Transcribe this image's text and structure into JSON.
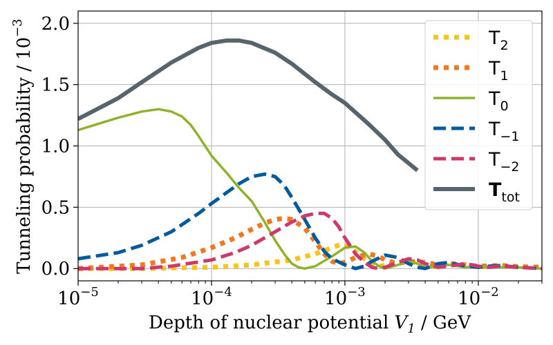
{
  "chart_data": {
    "type": "line",
    "xscale": "log",
    "xlim": [
      1e-05,
      0.03
    ],
    "ylim": [
      -0.1,
      2.1
    ],
    "grid": true,
    "legend_position": "top-right",
    "xlabel": {
      "main": "Depth of nuclear potential ",
      "var": "V",
      "sub": "1",
      "unit": " / GeV"
    },
    "ylabel": {
      "main": "Tunneling probability / 10",
      "sup": "−3"
    },
    "xticks": [
      {
        "value": 1e-05,
        "base": "10",
        "exp": "−5"
      },
      {
        "value": 0.0001,
        "base": "10",
        "exp": "−4"
      },
      {
        "value": 0.001,
        "base": "10",
        "exp": "−3"
      },
      {
        "value": 0.01,
        "base": "10",
        "exp": "−2"
      }
    ],
    "yticks": [
      {
        "value": 0.0,
        "label": "0.0"
      },
      {
        "value": 0.5,
        "label": "0.5"
      },
      {
        "value": 1.0,
        "label": "1.0"
      },
      {
        "value": 1.5,
        "label": "1.5"
      },
      {
        "value": 2.0,
        "label": "2.0"
      }
    ],
    "series": [
      {
        "id": "t2",
        "base": "T",
        "sub": "2",
        "color": "#f5c518",
        "style": "dotted",
        "points": [
          [
            1e-05,
            0.0
          ],
          [
            3e-05,
            0.0
          ],
          [
            0.0001,
            0.01
          ],
          [
            0.0002,
            0.03
          ],
          [
            0.0004,
            0.07
          ],
          [
            0.0006,
            0.12
          ],
          [
            0.0008,
            0.17
          ],
          [
            0.00095,
            0.2
          ],
          [
            0.0011,
            0.17
          ],
          [
            0.0014,
            0.08
          ],
          [
            0.0018,
            0.02
          ],
          [
            0.0022,
            0.03
          ],
          [
            0.003,
            0.06
          ],
          [
            0.004,
            0.03
          ],
          [
            0.005,
            0.01
          ],
          [
            0.006,
            0.04
          ],
          [
            0.008,
            0.03
          ],
          [
            0.01,
            0.01
          ],
          [
            0.012,
            0.02
          ],
          [
            0.015,
            0.025
          ],
          [
            0.02,
            0.015
          ],
          [
            0.03,
            0.01
          ]
        ]
      },
      {
        "id": "t1",
        "base": "T",
        "sub": "1",
        "color": "#f07820",
        "style": "dotted",
        "points": [
          [
            1e-05,
            0.0
          ],
          [
            3e-05,
            0.03
          ],
          [
            6e-05,
            0.09
          ],
          [
            0.0001,
            0.17
          ],
          [
            0.00015,
            0.25
          ],
          [
            0.0002,
            0.32
          ],
          [
            0.00025,
            0.37
          ],
          [
            0.0003,
            0.4
          ],
          [
            0.00035,
            0.41
          ],
          [
            0.0004,
            0.4
          ],
          [
            0.0005,
            0.33
          ],
          [
            0.0006,
            0.22
          ],
          [
            0.0007,
            0.12
          ],
          [
            0.0008,
            0.06
          ],
          [
            0.0009,
            0.04
          ],
          [
            0.001,
            0.05
          ],
          [
            0.0012,
            0.09
          ],
          [
            0.0015,
            0.12
          ],
          [
            0.0018,
            0.1
          ],
          [
            0.002,
            0.07
          ],
          [
            0.0025,
            0.04
          ],
          [
            0.003,
            0.06
          ],
          [
            0.004,
            0.05
          ],
          [
            0.005,
            0.03
          ],
          [
            0.006,
            0.04
          ],
          [
            0.008,
            0.03
          ],
          [
            0.01,
            0.02
          ],
          [
            0.015,
            0.025
          ],
          [
            0.02,
            0.015
          ],
          [
            0.03,
            0.01
          ]
        ]
      },
      {
        "id": "t0",
        "base": "T",
        "sub": "0",
        "color": "#8db32a",
        "style": "solid",
        "points": [
          [
            1e-05,
            1.13
          ],
          [
            2e-05,
            1.23
          ],
          [
            3e-05,
            1.28
          ],
          [
            4e-05,
            1.3
          ],
          [
            5e-05,
            1.28
          ],
          [
            6e-05,
            1.24
          ],
          [
            7e-05,
            1.17
          ],
          [
            8e-05,
            1.08
          ],
          [
            0.0001,
            0.92
          ],
          [
            0.00013,
            0.78
          ],
          [
            0.00016,
            0.66
          ],
          [
            0.0002,
            0.55
          ],
          [
            0.00025,
            0.38
          ],
          [
            0.0003,
            0.23
          ],
          [
            0.00035,
            0.12
          ],
          [
            0.0004,
            0.04
          ],
          [
            0.00045,
            0.01
          ],
          [
            0.0005,
            0.0
          ],
          [
            0.0006,
            0.02
          ],
          [
            0.0008,
            0.1
          ],
          [
            0.001,
            0.17
          ],
          [
            0.0012,
            0.18
          ],
          [
            0.0014,
            0.13
          ],
          [
            0.0016,
            0.06
          ],
          [
            0.0018,
            0.02
          ],
          [
            0.002,
            0.0
          ],
          [
            0.0025,
            0.03
          ],
          [
            0.003,
            0.06
          ],
          [
            0.0035,
            0.04
          ],
          [
            0.004,
            0.01
          ],
          [
            0.005,
            0.02
          ],
          [
            0.006,
            0.03
          ],
          [
            0.008,
            0.01
          ],
          [
            0.01,
            0.02
          ],
          [
            0.015,
            0.01
          ],
          [
            0.02,
            0.01
          ],
          [
            0.03,
            0.0
          ]
        ]
      },
      {
        "id": "tm1",
        "base": "T",
        "sub": "−1",
        "color": "#005aa0",
        "style": "dashed",
        "points": [
          [
            1e-05,
            0.08
          ],
          [
            2e-05,
            0.13
          ],
          [
            3e-05,
            0.19
          ],
          [
            5e-05,
            0.3
          ],
          [
            8e-05,
            0.45
          ],
          [
            0.0001,
            0.53
          ],
          [
            0.00013,
            0.62
          ],
          [
            0.00016,
            0.69
          ],
          [
            0.0002,
            0.75
          ],
          [
            0.00025,
            0.77
          ],
          [
            0.0003,
            0.75
          ],
          [
            0.00035,
            0.68
          ],
          [
            0.0004,
            0.58
          ],
          [
            0.0005,
            0.4
          ],
          [
            0.0006,
            0.25
          ],
          [
            0.0007,
            0.14
          ],
          [
            0.0008,
            0.08
          ],
          [
            0.001,
            0.03
          ],
          [
            0.0012,
            0.0
          ],
          [
            0.0014,
            0.02
          ],
          [
            0.0016,
            0.06
          ],
          [
            0.002,
            0.11
          ],
          [
            0.0025,
            0.09
          ],
          [
            0.003,
            0.04
          ],
          [
            0.0035,
            0.01
          ],
          [
            0.004,
            0.0
          ],
          [
            0.005,
            0.04
          ],
          [
            0.006,
            0.05
          ],
          [
            0.008,
            0.02
          ],
          [
            0.01,
            0.01
          ],
          [
            0.012,
            0.02
          ],
          [
            0.015,
            0.025
          ],
          [
            0.02,
            0.01
          ],
          [
            0.03,
            0.0
          ]
        ]
      },
      {
        "id": "tm2",
        "base": "T",
        "sub": "−2",
        "color": "#d0376a",
        "style": "dashed",
        "points": [
          [
            1e-05,
            0.0
          ],
          [
            3e-05,
            0.0
          ],
          [
            5e-05,
            0.02
          ],
          [
            0.0001,
            0.07
          ],
          [
            0.00015,
            0.13
          ],
          [
            0.0002,
            0.19
          ],
          [
            0.0003,
            0.3
          ],
          [
            0.0004,
            0.38
          ],
          [
            0.0005,
            0.43
          ],
          [
            0.0006,
            0.45
          ],
          [
            0.0007,
            0.45
          ],
          [
            0.0008,
            0.41
          ],
          [
            0.0009,
            0.34
          ],
          [
            0.001,
            0.25
          ],
          [
            0.0012,
            0.12
          ],
          [
            0.0014,
            0.05
          ],
          [
            0.0016,
            0.01
          ],
          [
            0.0018,
            0.0
          ],
          [
            0.002,
            0.01
          ],
          [
            0.0025,
            0.05
          ],
          [
            0.003,
            0.08
          ],
          [
            0.0035,
            0.07
          ],
          [
            0.004,
            0.04
          ],
          [
            0.005,
            0.01
          ],
          [
            0.006,
            0.02
          ],
          [
            0.008,
            0.04
          ],
          [
            0.01,
            0.02
          ],
          [
            0.012,
            0.01
          ],
          [
            0.015,
            0.02
          ],
          [
            0.02,
            0.01
          ],
          [
            0.03,
            0.0
          ]
        ]
      },
      {
        "id": "ttot",
        "base": "T",
        "sub": "tot",
        "color": "#58646c",
        "style": "solid",
        "bold": true,
        "points": [
          [
            1e-05,
            1.22
          ],
          [
            2e-05,
            1.39
          ],
          [
            3e-05,
            1.52
          ],
          [
            5e-05,
            1.68
          ],
          [
            8e-05,
            1.8
          ],
          [
            0.0001,
            1.84
          ],
          [
            0.00013,
            1.86
          ],
          [
            0.00016,
            1.86
          ],
          [
            0.0002,
            1.84
          ],
          [
            0.0003,
            1.76
          ],
          [
            0.0004,
            1.67
          ],
          [
            0.0006,
            1.52
          ],
          [
            0.0008,
            1.42
          ],
          [
            0.001,
            1.35
          ],
          [
            0.0015,
            1.18
          ],
          [
            0.002,
            1.05
          ],
          [
            0.0025,
            0.93
          ],
          [
            0.003,
            0.86
          ],
          [
            0.0035,
            0.8
          ]
        ]
      }
    ]
  }
}
